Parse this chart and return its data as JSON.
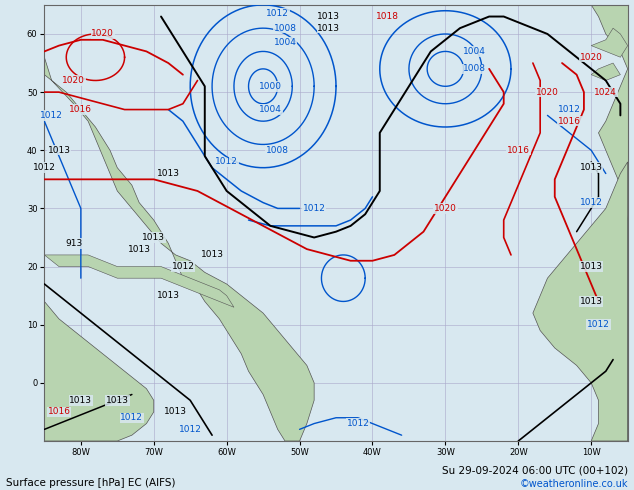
{
  "title": "Surface pressure [hPa] EC (AIFS)",
  "datetime_label": "Su 29-09-2024 06:00 UTC (00+102)",
  "watermark": "©weatheronline.co.uk",
  "background_color": "#c8e0c8",
  "ocean_color": "#d8e8f0",
  "land_color": "#b8d4b0",
  "grid_color": "#aaaacc",
  "figsize": [
    6.34,
    4.9
  ],
  "dpi": 100,
  "xlim": [
    -85,
    -5
  ],
  "ylim": [
    -10,
    65
  ],
  "xlabel_ticks": [
    -80,
    -70,
    -60,
    -50,
    -40,
    -30,
    -20,
    -10
  ],
  "ylabel_ticks": [
    0,
    10,
    20,
    30,
    40,
    50,
    60
  ],
  "xlabel_labels": [
    "80W",
    "70W",
    "60W",
    "50W",
    "40W",
    "30W",
    "20W",
    "10W"
  ],
  "ylabel_labels": [
    "0",
    "10",
    "20",
    "30",
    "40",
    "50",
    "60"
  ],
  "black": "#000000",
  "blue": "#0055cc",
  "red": "#cc0000",
  "label_fs": 6.5,
  "lw": 1.0
}
